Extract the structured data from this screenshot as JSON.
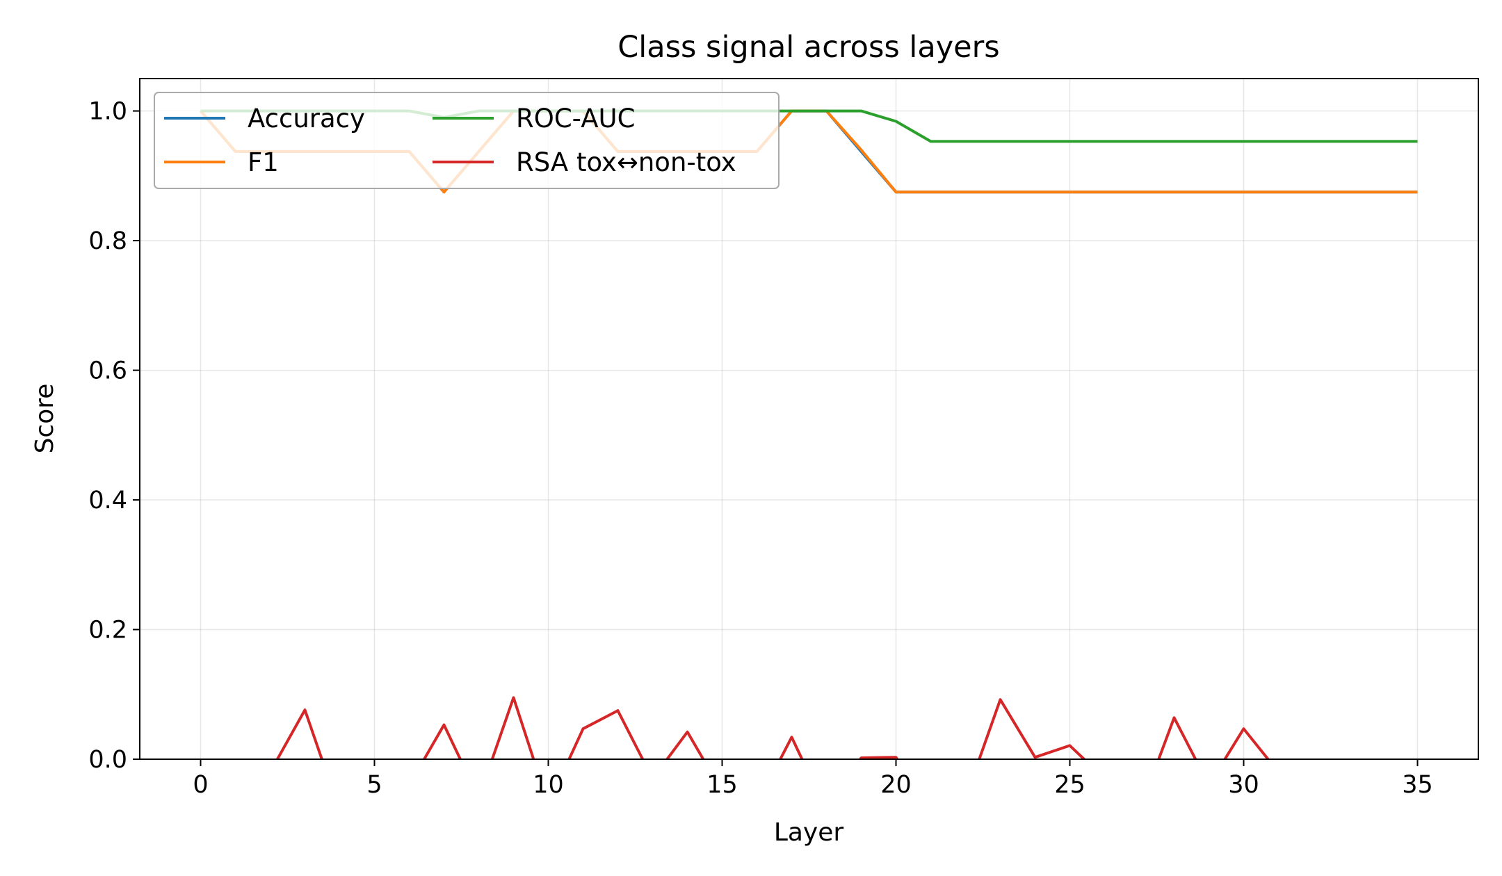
{
  "chart_data": {
    "type": "line",
    "title": "Class signal across layers",
    "xlabel": "Layer",
    "ylabel": "Score",
    "xlim": [
      -1.75,
      36.75
    ],
    "ylim": [
      0.0,
      1.05
    ],
    "xticks": [
      0,
      5,
      10,
      15,
      20,
      25,
      30,
      35
    ],
    "yticks": [
      0.0,
      0.2,
      0.4,
      0.6,
      0.8,
      1.0
    ],
    "grid": true,
    "legend": {
      "placement": "top-left",
      "columns": 2
    },
    "x": [
      0,
      1,
      2,
      3,
      4,
      5,
      6,
      7,
      8,
      9,
      10,
      11,
      12,
      13,
      14,
      15,
      16,
      17,
      18,
      19,
      20,
      21,
      22,
      23,
      24,
      25,
      26,
      27,
      28,
      29,
      30,
      31,
      32,
      33,
      34,
      35
    ],
    "series": [
      {
        "name": "Accuracy",
        "color": "#1f77b4",
        "values": [
          1.0,
          0.9375,
          0.9375,
          0.9375,
          0.9375,
          0.9375,
          0.9375,
          0.875,
          0.9375,
          1.0,
          1.0,
          1.0,
          0.9375,
          0.9375,
          0.9375,
          0.9375,
          0.9375,
          1.0,
          1.0,
          0.9375,
          0.875,
          0.875,
          0.875,
          0.875,
          0.875,
          0.875,
          0.875,
          0.875,
          0.875,
          0.875,
          0.875,
          0.875,
          0.875,
          0.875,
          0.875,
          0.875
        ]
      },
      {
        "name": "F1",
        "color": "#ff7f0e",
        "values": [
          1.0,
          0.9375,
          0.9375,
          0.9375,
          0.9375,
          0.9375,
          0.9375,
          0.875,
          0.9375,
          1.0,
          1.0,
          1.0,
          0.9375,
          0.9375,
          0.9375,
          0.9375,
          0.9375,
          1.0,
          1.0,
          0.94,
          0.875,
          0.875,
          0.875,
          0.875,
          0.875,
          0.875,
          0.875,
          0.875,
          0.875,
          0.875,
          0.875,
          0.875,
          0.875,
          0.875,
          0.875,
          0.875
        ]
      },
      {
        "name": "ROC-AUC",
        "color": "#2ca02c",
        "values": [
          1.0,
          1.0,
          1.0,
          1.0,
          1.0,
          1.0,
          1.0,
          0.99,
          1.0,
          1.0,
          1.0,
          1.0,
          1.0,
          1.0,
          1.0,
          1.0,
          1.0,
          1.0,
          1.0,
          1.0,
          0.984,
          0.953,
          0.953,
          0.953,
          0.953,
          0.953,
          0.953,
          0.953,
          0.953,
          0.953,
          0.953,
          0.953,
          0.953,
          0.953,
          0.953,
          0.953
        ]
      },
      {
        "name": "RSA tox↔non-tox",
        "color": "#d62728",
        "values": [
          -0.06,
          -0.05,
          -0.02,
          0.076,
          -0.08,
          -0.06,
          -0.04,
          0.053,
          -0.06,
          0.095,
          -0.07,
          0.047,
          0.075,
          -0.03,
          0.042,
          -0.05,
          -0.07,
          0.034,
          -0.08,
          0.002,
          0.003,
          -0.09,
          -0.06,
          0.092,
          0.003,
          0.021,
          -0.03,
          -0.08,
          0.064,
          -0.04,
          0.047,
          -0.02,
          -0.06,
          -0.07,
          -0.05,
          -0.08
        ]
      }
    ]
  }
}
